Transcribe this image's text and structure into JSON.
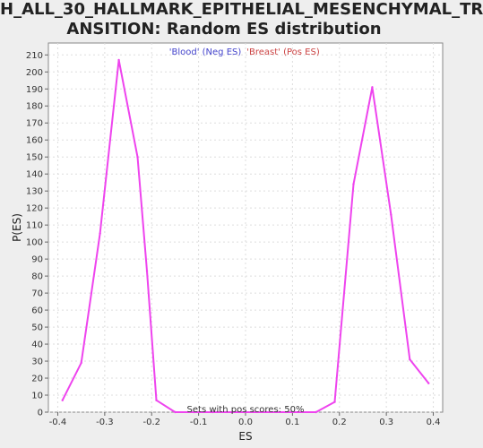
{
  "chart_data": {
    "type": "line",
    "title_line1": "H_ALL_30_HALLMARK_EPITHELIAL_MESENCHYMAL_TR",
    "title_line2": "ANSITION: Random ES distribution",
    "xlabel": "ES",
    "ylabel": "P(ES)",
    "xlim": [
      -0.42,
      0.42
    ],
    "ylim": [
      0,
      217
    ],
    "xticks": [
      -0.4,
      -0.3,
      -0.2,
      -0.1,
      0.0,
      0.1,
      0.2,
      0.3,
      0.4
    ],
    "xtick_labels": [
      "-0.4",
      "-0.3",
      "-0.2",
      "-0.1",
      "0.0",
      "0.1",
      "0.2",
      "0.3",
      "0.4"
    ],
    "yticks": [
      0,
      10,
      20,
      30,
      40,
      50,
      60,
      70,
      80,
      90,
      100,
      110,
      120,
      130,
      140,
      150,
      160,
      170,
      180,
      190,
      200,
      210
    ],
    "ytick_labels": [
      "0",
      "10",
      "20",
      "30",
      "40",
      "50",
      "60",
      "70",
      "80",
      "90",
      "100",
      "110",
      "120",
      "130",
      "140",
      "150",
      "160",
      "170",
      "180",
      "190",
      "200",
      "210"
    ],
    "grid": true,
    "line_color": "#ee44ee",
    "legend": [
      {
        "label": "'Blood' (Neg ES)",
        "color": "#4444cc"
      },
      {
        "label": "'Breast' (Pos ES)",
        "color": "#cc4444"
      }
    ],
    "annotation": "Sets with pos scores: 50%",
    "x": [
      -0.39,
      -0.35,
      -0.31,
      -0.27,
      -0.23,
      -0.21,
      -0.19,
      -0.15,
      -0.11,
      -0.07,
      0.15,
      0.19,
      0.23,
      0.27,
      0.31,
      0.35,
      0.39
    ],
    "y": [
      7,
      29,
      105,
      207,
      150,
      83,
      7,
      0,
      0,
      0,
      0,
      6,
      134,
      191,
      116,
      31,
      17
    ]
  }
}
